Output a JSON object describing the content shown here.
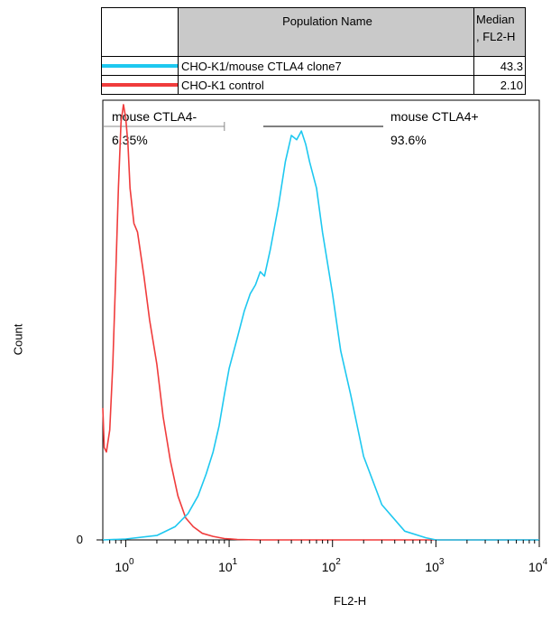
{
  "legend": {
    "header_name": "Population Name",
    "header_median_1": "Median",
    "header_median_2": ", FL2-H",
    "rows": [
      {
        "name": "CHO-K1/mouse CTLA4 clone7",
        "median": "43.3",
        "color": "#1ec8f0"
      },
      {
        "name": "CHO-K1 control",
        "median": "2.10",
        "color": "#f03c3c"
      }
    ]
  },
  "chart_data": {
    "type": "line",
    "xlabel": "FL2-H",
    "ylabel": "Count",
    "x_scale": "log",
    "xlim": [
      0.6,
      10000
    ],
    "ylim": [
      0,
      100
    ],
    "x_ticks": [
      {
        "value": 1,
        "base": "10",
        "exp": "0"
      },
      {
        "value": 10,
        "base": "10",
        "exp": "1"
      },
      {
        "value": 100,
        "base": "10",
        "exp": "2"
      },
      {
        "value": 1000,
        "base": "10",
        "exp": "3"
      },
      {
        "value": 10000,
        "base": "10",
        "exp": "4"
      }
    ],
    "y_ticks": [
      {
        "value": 0,
        "label": "0"
      }
    ],
    "gates": [
      {
        "label": "mouse CTLA4-",
        "percent": "6.35%",
        "range": [
          0.6,
          9
        ]
      },
      {
        "label": "mouse CTLA4+",
        "percent": "93.6%",
        "range": [
          9,
          10000
        ]
      }
    ],
    "series": [
      {
        "name": "CHO-K1 control",
        "color": "#f03c3c",
        "x": [
          0.6,
          0.62,
          0.65,
          0.7,
          0.75,
          0.8,
          0.85,
          0.9,
          0.95,
          1.0,
          1.05,
          1.1,
          1.2,
          1.3,
          1.5,
          1.7,
          2.0,
          2.3,
          2.7,
          3.2,
          3.8,
          4.5,
          5.5,
          7,
          9,
          12,
          20,
          50,
          10000
        ],
        "y": [
          30,
          21,
          20,
          25,
          40,
          60,
          80,
          95,
          99,
          96,
          90,
          80,
          72,
          70,
          60,
          50,
          40,
          28,
          18,
          10,
          5,
          3,
          1.5,
          0.8,
          0.3,
          0.1,
          0,
          0,
          0
        ]
      },
      {
        "name": "CHO-K1/mouse CTLA4 clone7",
        "color": "#1ec8f0",
        "x": [
          0.6,
          1,
          2,
          3,
          4,
          5,
          6,
          7,
          8,
          9,
          10,
          12,
          14,
          16,
          18,
          20,
          22,
          25,
          30,
          35,
          40,
          45,
          50,
          55,
          60,
          70,
          80,
          100,
          120,
          150,
          200,
          300,
          500,
          800,
          1000,
          10000
        ],
        "y": [
          0,
          0.2,
          1,
          3,
          6,
          10,
          15,
          20,
          26,
          33,
          39,
          46,
          52,
          56,
          58,
          61,
          60,
          66,
          76,
          86,
          92,
          91,
          93,
          90,
          86,
          80,
          70,
          56,
          43,
          33,
          19,
          8,
          2,
          0.5,
          0,
          0
        ]
      }
    ]
  }
}
